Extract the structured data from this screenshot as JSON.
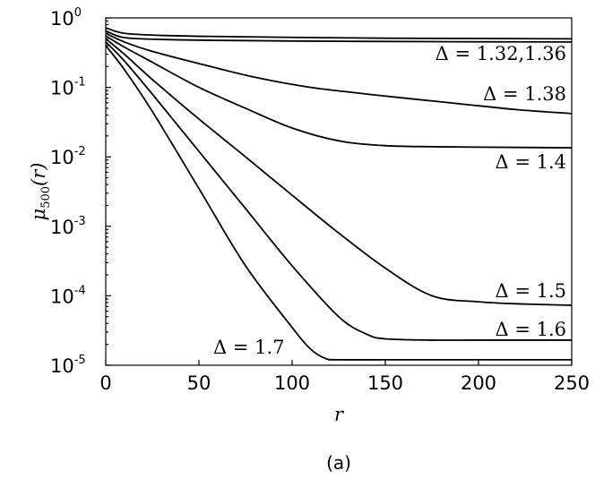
{
  "chart_data": {
    "type": "line",
    "title": "",
    "xlabel": "r",
    "ylabel": "μ500(r)",
    "ylabel_parts": {
      "base": "μ",
      "sub": "500",
      "arg": "(r)"
    },
    "xlim": [
      0,
      250
    ],
    "ylim": [
      1e-05,
      1
    ],
    "yscale": "log",
    "grid": false,
    "x_ticks": [
      "0",
      "50",
      "100",
      "150",
      "200",
      "250"
    ],
    "y_ticks": [
      {
        "base": "10",
        "exp": "0",
        "value": 1
      },
      {
        "base": "10",
        "exp": "-1",
        "value": 0.1
      },
      {
        "base": "10",
        "exp": "-2",
        "value": 0.01
      },
      {
        "base": "10",
        "exp": "-3",
        "value": 0.001
      },
      {
        "base": "10",
        "exp": "-4",
        "value": 0.0001
      },
      {
        "base": "10",
        "exp": "-5",
        "value": 1e-05
      }
    ],
    "series": [
      {
        "label": "Δ = 1.32",
        "x": [
          0,
          10,
          30,
          60,
          100,
          150,
          200,
          250
        ],
        "y": [
          0.72,
          0.6,
          0.56,
          0.54,
          0.525,
          0.51,
          0.505,
          0.5
        ]
      },
      {
        "label": "Δ = 1.36",
        "x": [
          0,
          10,
          30,
          60,
          100,
          150,
          200,
          250
        ],
        "y": [
          0.65,
          0.52,
          0.49,
          0.475,
          0.465,
          0.458,
          0.453,
          0.45
        ]
      },
      {
        "label": "Δ = 1.38",
        "x": [
          0,
          10,
          25,
          50,
          80,
          110,
          150,
          190,
          220,
          250
        ],
        "y": [
          0.6,
          0.45,
          0.33,
          0.22,
          0.14,
          0.1,
          0.075,
          0.058,
          0.048,
          0.042
        ]
      },
      {
        "label": "Δ = 1.4",
        "x": [
          0,
          10,
          25,
          50,
          75,
          100,
          125,
          150,
          175,
          200,
          250
        ],
        "y": [
          0.55,
          0.38,
          0.23,
          0.1,
          0.05,
          0.026,
          0.017,
          0.0145,
          0.014,
          0.0138,
          0.0135
        ]
      },
      {
        "label": "Δ = 1.5",
        "x": [
          0,
          10,
          25,
          50,
          75,
          100,
          125,
          150,
          175,
          200,
          225,
          250
        ],
        "y": [
          0.5,
          0.3,
          0.13,
          0.035,
          0.01,
          0.0028,
          0.0008,
          0.00025,
          0.0001,
          8.2e-05,
          7.6e-05,
          7.3e-05
        ]
      },
      {
        "label": "Δ = 1.6",
        "x": [
          0,
          10,
          25,
          50,
          75,
          100,
          125,
          140,
          150,
          175,
          200,
          250
        ],
        "y": [
          0.45,
          0.24,
          0.08,
          0.012,
          0.0018,
          0.00027,
          5e-05,
          2.8e-05,
          2.4e-05,
          2.3e-05,
          2.3e-05,
          2.3e-05
        ]
      },
      {
        "label": "Δ = 1.7",
        "x": [
          0,
          10,
          25,
          50,
          75,
          100,
          110,
          118,
          125,
          150,
          200,
          250
        ],
        "y": [
          0.4,
          0.18,
          0.045,
          0.0035,
          0.00027,
          3.5e-05,
          1.7e-05,
          1.25e-05,
          1.2e-05,
          1.2e-05,
          1.2e-05,
          1.2e-05
        ]
      }
    ],
    "annotations": [
      {
        "key": "a132",
        "text": "Δ = 1.32,1.36",
        "lhs": "Δ",
        "rhs": "1.32,1.36"
      },
      {
        "key": "a138",
        "text": "Δ = 1.38",
        "lhs": "Δ",
        "rhs": "1.38"
      },
      {
        "key": "a14",
        "text": "Δ = 1.4",
        "lhs": "Δ",
        "rhs": "1.4"
      },
      {
        "key": "a15",
        "text": "Δ = 1.5",
        "lhs": "Δ",
        "rhs": "1.5"
      },
      {
        "key": "a16",
        "text": "Δ = 1.6",
        "lhs": "Δ",
        "rhs": "1.6"
      },
      {
        "key": "a17",
        "text": "Δ = 1.7",
        "lhs": "Δ",
        "rhs": "1.7"
      }
    ],
    "caption": "(a)"
  }
}
